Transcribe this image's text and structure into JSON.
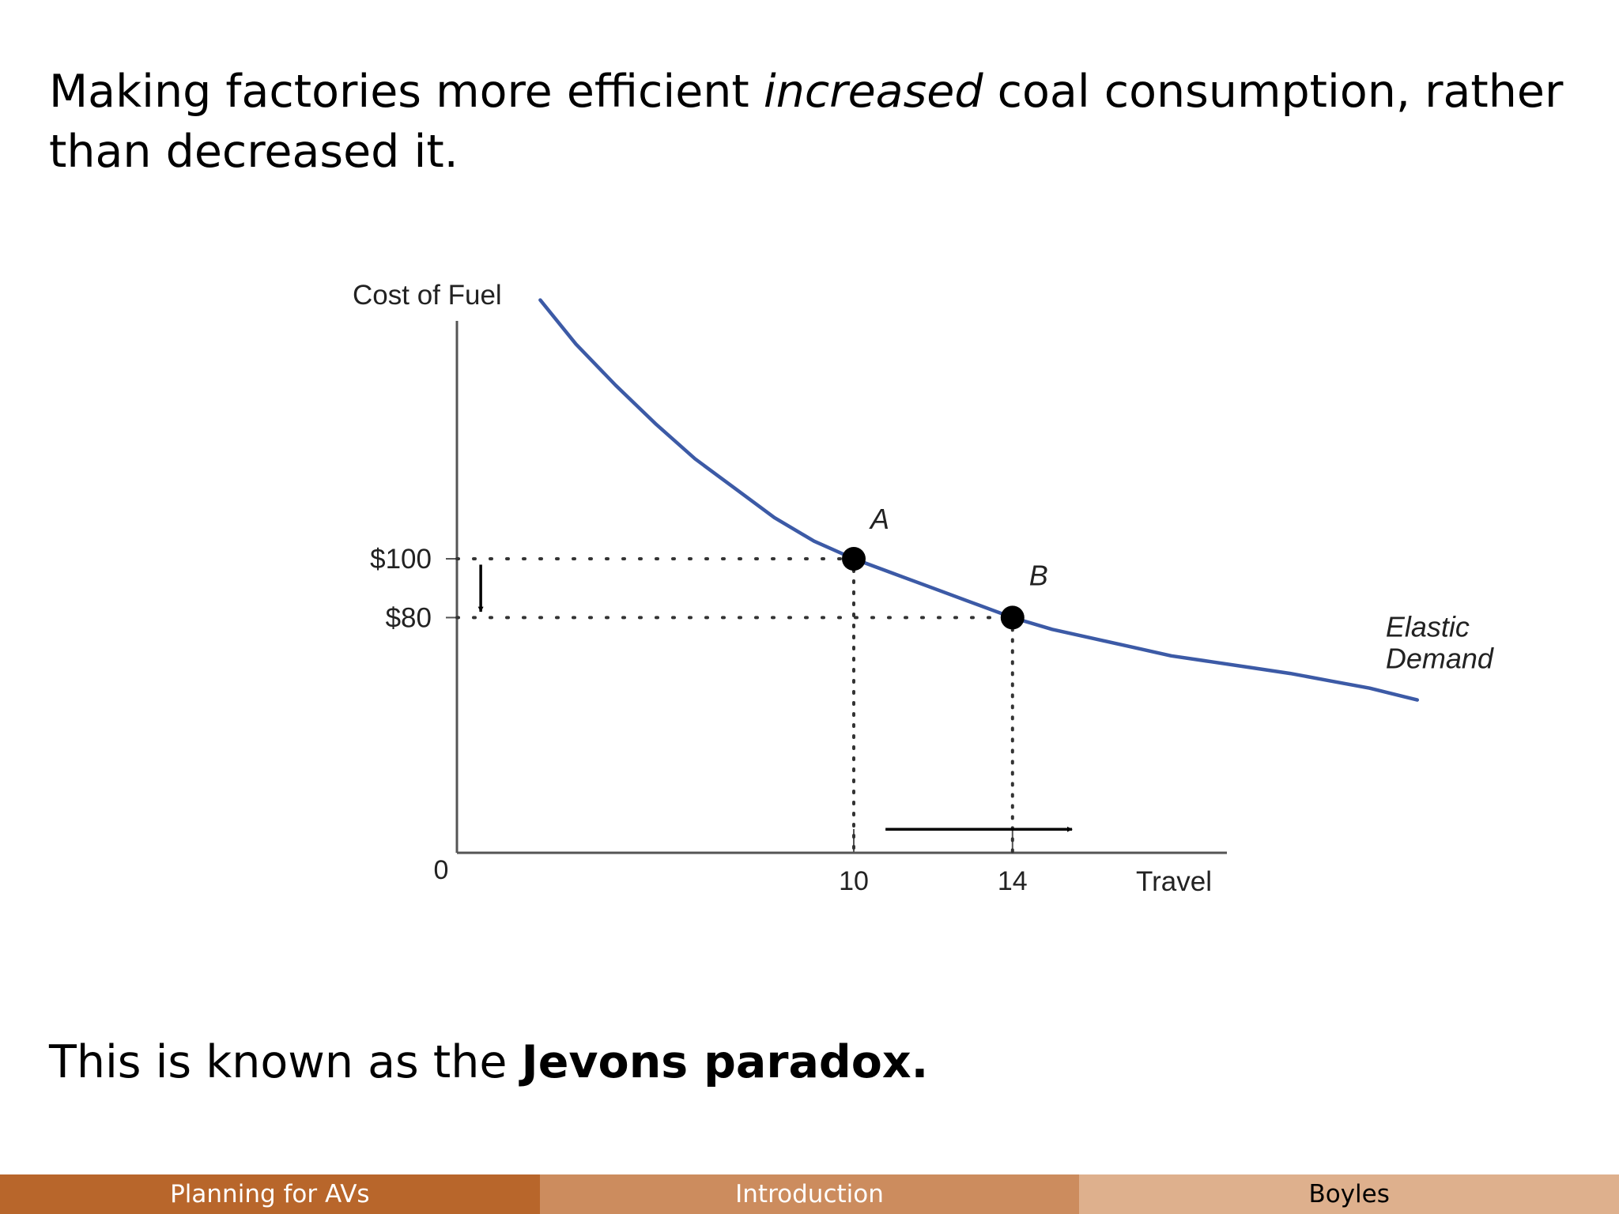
{
  "slide": {
    "intro": {
      "before": "Making factories more efficient ",
      "emphasis": "increased",
      "after": " coal consumption, rather than decreased it."
    },
    "conclusion": {
      "before": "This is known as the ",
      "bold": "Jevons paradox."
    }
  },
  "chart_data": {
    "type": "line",
    "ylabel": "Cost of Fuel",
    "xlabel": "Travel",
    "origin_label": "0",
    "ylim": [
      0,
      210
    ],
    "xlim": [
      0,
      29
    ],
    "grid": false,
    "legend": "none",
    "series": [
      {
        "label": "Elastic Demand",
        "label_lines": [
          "Elastic",
          "Demand"
        ],
        "color": "#3c5aa6",
        "x": [
          2.1,
          3,
          4,
          5,
          6,
          7,
          8,
          9,
          10,
          11,
          12,
          13,
          14,
          15,
          16,
          17,
          18,
          19,
          20,
          21,
          22,
          23,
          24.2
        ],
        "y": [
          188,
          173,
          159,
          146,
          134,
          124,
          114,
          106,
          100,
          95,
          90,
          85,
          80,
          76,
          73,
          70,
          67,
          65,
          63,
          61,
          58.5,
          56,
          52
        ]
      }
    ],
    "points": [
      {
        "label": "A",
        "x": 10,
        "y": 100
      },
      {
        "label": "B",
        "x": 14,
        "y": 80
      }
    ],
    "xticks": [
      {
        "value": 10,
        "label": "10"
      },
      {
        "value": 14,
        "label": "14"
      }
    ],
    "yticks": [
      {
        "value": 100,
        "label": "$100"
      },
      {
        "value": 80,
        "label": "$80"
      }
    ],
    "annotations": [
      {
        "type": "arrow",
        "direction": "down",
        "from": {
          "x": 0.6,
          "y": 98
        },
        "to": {
          "x": 0.6,
          "y": 82
        }
      },
      {
        "type": "arrow",
        "direction": "right",
        "from": {
          "x": 10.8,
          "y": 8
        },
        "to": {
          "x": 15.5,
          "y": 8
        }
      }
    ]
  },
  "footer": {
    "items": [
      {
        "label": "Planning for AVs",
        "bg": "#b8662b",
        "fg": "#ffffff"
      },
      {
        "label": "Introduction",
        "bg": "#cc8c5e",
        "fg": "#ffffff"
      },
      {
        "label": "Boyles",
        "bg": "#deb08d",
        "fg": "#000000"
      }
    ]
  }
}
